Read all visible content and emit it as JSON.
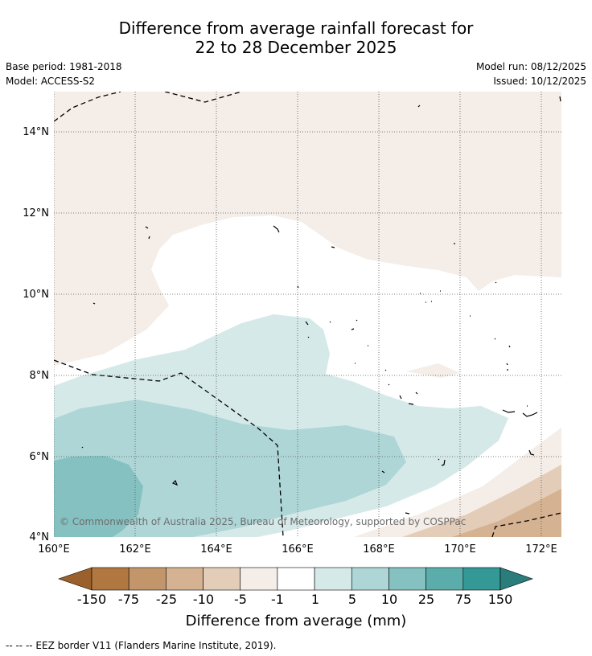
{
  "title": {
    "line1": "Difference from average rainfall forecast for",
    "line2": "22 to 28 December 2025"
  },
  "meta": {
    "base_period": "Base period: 1981-2018",
    "model": "Model: ACCESS-S2",
    "model_run": "Model run: 08/12/2025",
    "issued": "Issued: 10/12/2025"
  },
  "map": {
    "lat_labels": [
      "14°N",
      "12°N",
      "10°N",
      "8°N",
      "6°N",
      "4°N"
    ],
    "lon_labels": [
      "160°E",
      "162°E",
      "164°E",
      "166°E",
      "168°E",
      "170°E",
      "172°E"
    ],
    "copyright": "© Commonwealth of Australia 2025, Bureau of Meteorology, supported by COSPPac"
  },
  "colorbar": {
    "labels": [
      "-150",
      "-75",
      "-25",
      "-10",
      "-5",
      "-1",
      "1",
      "5",
      "10",
      "25",
      "75",
      "150"
    ],
    "colors": [
      "#9a612c",
      "#b07840",
      "#c2956a",
      "#d4b292",
      "#e3cdb9",
      "#f4ede8",
      "#ffffff",
      "#d5e9e8",
      "#aed6d6",
      "#84c1c0",
      "#5aadab",
      "#339896",
      "#2a7d7b"
    ],
    "title": "Difference from average (mm)"
  },
  "footer": "--  --  -- EEZ border V11 (Flanders Marine Institute, 2019)."
}
